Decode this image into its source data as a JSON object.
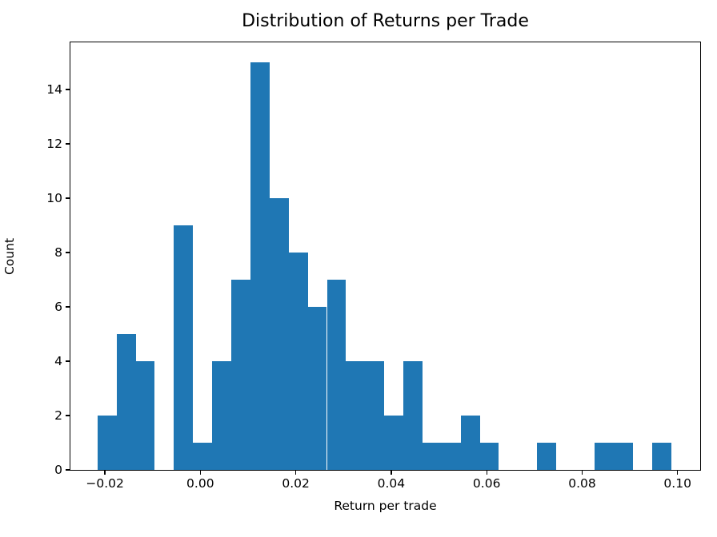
{
  "figure": {
    "title": "Distribution of Returns per Trade",
    "xlabel": "Return per trade",
    "ylabel": "Count",
    "background_color": "#ffffff",
    "bar_color": "#1f77b4",
    "spine_color": "#000000",
    "text_color": "#000000"
  },
  "chart_data": {
    "type": "bar",
    "subtype": "histogram",
    "title": "Distribution of Returns per Trade",
    "xlabel": "Return per trade",
    "ylabel": "Count",
    "bin_edges": [
      -0.02156,
      -0.01755,
      -0.01355,
      -0.00954,
      -0.00553,
      -0.00153,
      0.00248,
      0.00649,
      0.01049,
      0.0145,
      0.01851,
      0.02251,
      0.02652,
      0.03053,
      0.03453,
      0.03854,
      0.04255,
      0.04655,
      0.05056,
      0.05457,
      0.05857,
      0.06258,
      0.06659,
      0.07059,
      0.0746,
      0.07861,
      0.08261,
      0.08662,
      0.09063,
      0.09463,
      0.09864
    ],
    "counts": [
      2,
      5,
      4,
      0,
      9,
      1,
      4,
      7,
      15,
      10,
      8,
      6,
      7,
      4,
      4,
      2,
      4,
      1,
      1,
      2,
      1,
      0,
      0,
      1,
      0,
      0,
      1,
      1,
      0,
      1
    ],
    "x_ticks": [
      -0.02,
      0.0,
      0.02,
      0.04,
      0.06,
      0.08,
      0.1
    ],
    "x_tick_labels": [
      "−0.02",
      "0.00",
      "0.02",
      "0.04",
      "0.06",
      "0.08",
      "0.10"
    ],
    "y_ticks": [
      0,
      2,
      4,
      6,
      8,
      10,
      12,
      14
    ],
    "y_tick_labels": [
      "0",
      "2",
      "4",
      "6",
      "8",
      "10",
      "12",
      "14"
    ],
    "xlim": [
      -0.02722,
      0.10474
    ],
    "ylim": [
      0,
      15.74
    ],
    "grid": false,
    "legend": null,
    "bar_color": "#1f77b4"
  }
}
